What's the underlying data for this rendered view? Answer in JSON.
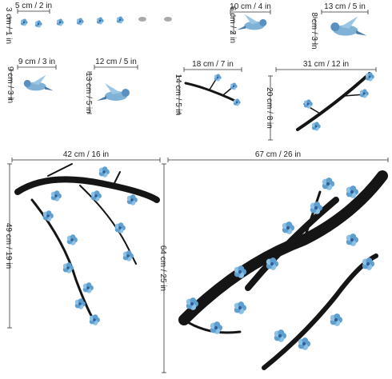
{
  "items": [
    {
      "width": "5 cm / 2 in",
      "height": "3 cm / 1 in"
    },
    {
      "width": "10 cm / 4 in",
      "height": "6 cm / 2 in"
    },
    {
      "width": "13 cm / 5 in",
      "height": "8 cm / 3 in"
    },
    {
      "width": "9 cm / 3 in",
      "height": "9 cm / 3 in"
    },
    {
      "width": "12 cm / 5 in",
      "height": "13 cm / 5 in"
    },
    {
      "width": "18 cm / 7 in",
      "height": "14 cm / 5 in"
    },
    {
      "width": "31 cm / 12 in",
      "height": "20 cm / 8 in"
    },
    {
      "width": "42 cm / 16 in",
      "height": "49 cm / 19 in"
    },
    {
      "width": "67 cm / 26 in",
      "height": "64 cm / 25 in"
    }
  ]
}
